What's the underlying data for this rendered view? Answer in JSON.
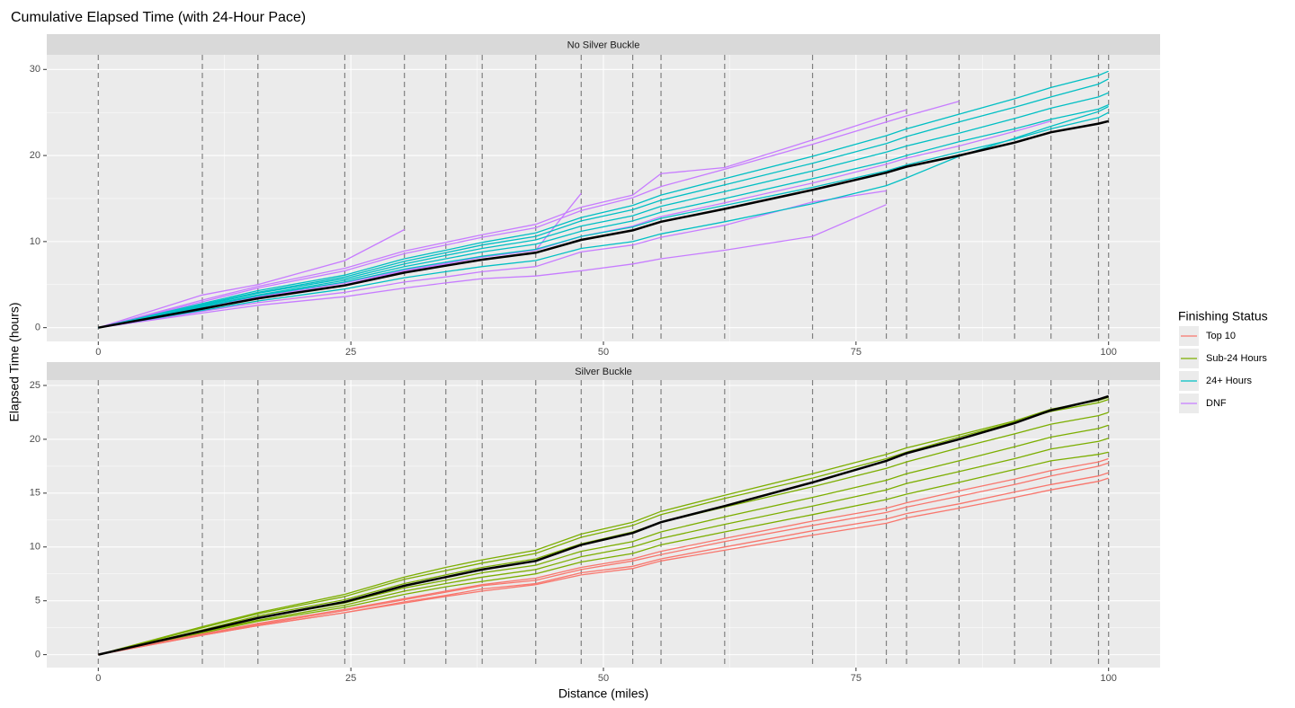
{
  "chart_data": {
    "type": "line",
    "title": "Cumulative Elapsed Time (with 24-Hour Pace)",
    "xlabel": "Distance (miles)",
    "ylabel": "Elapsed Time (hours)",
    "legend_title": "Finishing Status",
    "x": [
      0,
      10.3,
      15.8,
      24.4,
      30.3,
      34.4,
      38,
      43.3,
      47.8,
      52.9,
      55.7,
      62,
      70.7,
      78,
      80,
      85.2,
      90.7,
      94.3,
      99,
      100
    ],
    "xlim": [
      -5.1,
      105.1
    ],
    "xticks": [
      0,
      25,
      50,
      75,
      100
    ],
    "panels": [
      {
        "title": "No Silver Buckle",
        "ylim": [
          -1.6,
          31.7
        ],
        "yticks": [
          0,
          10,
          20,
          30
        ]
      },
      {
        "title": "Silver Buckle",
        "ylim": [
          -1.2,
          25.5
        ],
        "yticks": [
          0,
          5,
          10,
          15,
          20,
          25
        ]
      }
    ],
    "pace": {
      "color": "#000000",
      "values": [
        0,
        2.2,
        3.4,
        4.9,
        6.4,
        7.2,
        7.9,
        8.7,
        10.2,
        11.3,
        12.3,
        13.8,
        16,
        18,
        18.7,
        20,
        21.5,
        22.7,
        23.7,
        24
      ]
    },
    "series": [
      {
        "name": "Top 10",
        "color": "#F8766D",
        "panel": 1,
        "runners": [
          [
            0,
            1.9,
            2.8,
            4.1,
            5.1,
            5.8,
            6.4,
            6.9,
            7.9,
            8.7,
            9.3,
            10.5,
            12.0,
            13.2,
            13.7,
            14.7,
            15.8,
            16.6,
            17.5,
            17.8
          ],
          [
            0,
            1.8,
            2.7,
            3.9,
            4.9,
            5.5,
            6.1,
            6.6,
            7.6,
            8.2,
            8.9,
            10.0,
            11.5,
            12.6,
            13.1,
            14.0,
            15.1,
            15.8,
            16.6,
            16.9
          ],
          [
            0,
            1.8,
            2.7,
            3.9,
            4.8,
            5.4,
            5.9,
            6.5,
            7.4,
            8.0,
            8.7,
            9.7,
            11.1,
            12.2,
            12.7,
            13.6,
            14.6,
            15.3,
            16.1,
            16.4
          ],
          [
            0,
            1.9,
            2.9,
            4.2,
            5.2,
            5.9,
            6.5,
            7.1,
            8.1,
            8.9,
            9.6,
            10.8,
            12.4,
            13.6,
            14.1,
            15.2,
            16.3,
            17.1,
            17.9,
            18.2
          ]
        ]
      },
      {
        "name": "Sub-24 Hours",
        "color": "#7CAE00",
        "panel": 1,
        "runners": [
          [
            0,
            2.5,
            3.8,
            5.4,
            7.0,
            7.8,
            8.5,
            9.4,
            10.9,
            12.0,
            13.0,
            14.5,
            16.4,
            18.2,
            18.8,
            20.2,
            21.6,
            22.6,
            23.4,
            23.7
          ],
          [
            0,
            2.3,
            3.6,
            5.1,
            6.6,
            7.4,
            8.1,
            8.9,
            10.3,
            11.4,
            12.3,
            13.7,
            15.6,
            17.3,
            17.9,
            19.2,
            20.5,
            21.4,
            22.2,
            22.5
          ],
          [
            0,
            2.2,
            3.4,
            4.8,
            6.2,
            6.9,
            7.6,
            8.3,
            9.6,
            10.5,
            11.4,
            12.8,
            14.6,
            16.2,
            16.8,
            18.0,
            19.3,
            20.2,
            21.0,
            21.3
          ],
          [
            0,
            2.1,
            3.2,
            4.6,
            5.9,
            6.6,
            7.2,
            7.9,
            9.1,
            10.0,
            10.8,
            12.1,
            13.8,
            15.3,
            15.9,
            17.0,
            18.2,
            19.1,
            19.8,
            20.1
          ],
          [
            0,
            2.0,
            3.1,
            4.4,
            5.6,
            6.3,
            6.8,
            7.5,
            8.6,
            9.4,
            10.2,
            11.4,
            13.0,
            14.4,
            14.9,
            16.0,
            17.2,
            18.0,
            18.6,
            18.8
          ],
          [
            0,
            2.6,
            3.9,
            5.6,
            7.2,
            8.1,
            8.8,
            9.7,
            11.2,
            12.3,
            13.3,
            14.8,
            16.8,
            18.6,
            19.2,
            20.4,
            21.7,
            22.8,
            23.6,
            23.9
          ]
        ]
      },
      {
        "name": "24+ Hours",
        "color": "#00BFC4",
        "panel": 0,
        "runners": [
          [
            0,
            2.7,
            4.1,
            5.9,
            7.7,
            8.7,
            9.6,
            10.6,
            12.4,
            13.7,
            14.8,
            16.6,
            19.1,
            21.4,
            22.2,
            23.9,
            25.6,
            26.8,
            28.3,
            28.9
          ],
          [
            0,
            2.6,
            4.0,
            5.7,
            7.4,
            8.4,
            9.2,
            10.2,
            11.8,
            13.0,
            14.1,
            15.8,
            18.2,
            20.4,
            21.1,
            22.6,
            24.3,
            25.5,
            26.8,
            27.3
          ],
          [
            0,
            2.8,
            4.3,
            6.1,
            8.0,
            9.0,
            9.9,
            11.0,
            12.8,
            14.2,
            15.4,
            17.3,
            19.9,
            22.3,
            23.1,
            24.8,
            26.6,
            27.9,
            29.3,
            29.8
          ],
          [
            0,
            2.5,
            3.8,
            5.5,
            7.1,
            8.0,
            8.8,
            9.7,
            11.2,
            12.4,
            13.4,
            15.0,
            17.3,
            19.3,
            20.0,
            21.6,
            23.1,
            24.2,
            25.4,
            25.9
          ],
          [
            0,
            2.4,
            3.7,
            5.3,
            6.8,
            7.6,
            8.3,
            9.1,
            10.6,
            11.7,
            12.7,
            14.2,
            16.3,
            18.2,
            18.9,
            20.4,
            21.9,
            23.1,
            24.4,
            25.0
          ],
          [
            0,
            2.0,
            3.1,
            4.5,
            5.8,
            6.5,
            7.1,
            7.8,
            9.2,
            10.0,
            10.9,
            12.3,
            14.4,
            16.5,
            17.4,
            19.9,
            22.0,
            23.4,
            25.1,
            25.7
          ]
        ]
      },
      {
        "name": "DNF",
        "color": "#C77CFF",
        "panel": 0,
        "runners": [
          [
            0,
            3.8,
            5.0,
            7.8,
            11.4,
            null,
            null,
            null,
            null,
            null,
            null,
            null,
            null,
            null,
            null,
            null,
            null,
            null,
            null,
            null
          ],
          [
            0,
            3.0,
            4.6,
            6.6,
            8.6,
            9.6,
            10.5,
            11.6,
            13.6,
            15.1,
            16.4,
            18.4,
            21.3,
            23.9,
            24.6,
            26.3,
            null,
            null,
            null,
            null
          ],
          [
            0,
            2.4,
            3.6,
            5.2,
            6.7,
            7.5,
            8.2,
            9.0,
            10.6,
            11.8,
            12.9,
            14.5,
            16.8,
            19.0,
            19.7,
            21.1,
            22.8,
            24.0,
            null,
            null
          ],
          [
            0,
            1.7,
            2.6,
            3.6,
            4.6,
            5.2,
            5.7,
            6.0,
            6.6,
            7.4,
            8.0,
            9.0,
            10.6,
            14.3,
            null,
            null,
            null,
            null,
            null,
            null
          ],
          [
            0,
            2.2,
            3.5,
            5.0,
            6.6,
            7.4,
            8.2,
            9.0,
            15.6,
            null,
            null,
            null,
            null,
            null,
            null,
            null,
            null,
            null,
            null,
            null
          ],
          [
            0,
            3.2,
            4.8,
            6.9,
            8.9,
            9.9,
            10.8,
            12.0,
            14.0,
            15.4,
            17.9,
            18.6,
            21.8,
            24.6,
            25.3,
            null,
            null,
            null,
            null,
            null
          ],
          [
            0,
            1.9,
            2.9,
            4.1,
            5.3,
            5.9,
            6.5,
            7.1,
            8.8,
            9.6,
            10.5,
            11.9,
            14.6,
            15.9,
            null,
            null,
            null,
            null,
            null,
            null
          ]
        ]
      }
    ]
  }
}
